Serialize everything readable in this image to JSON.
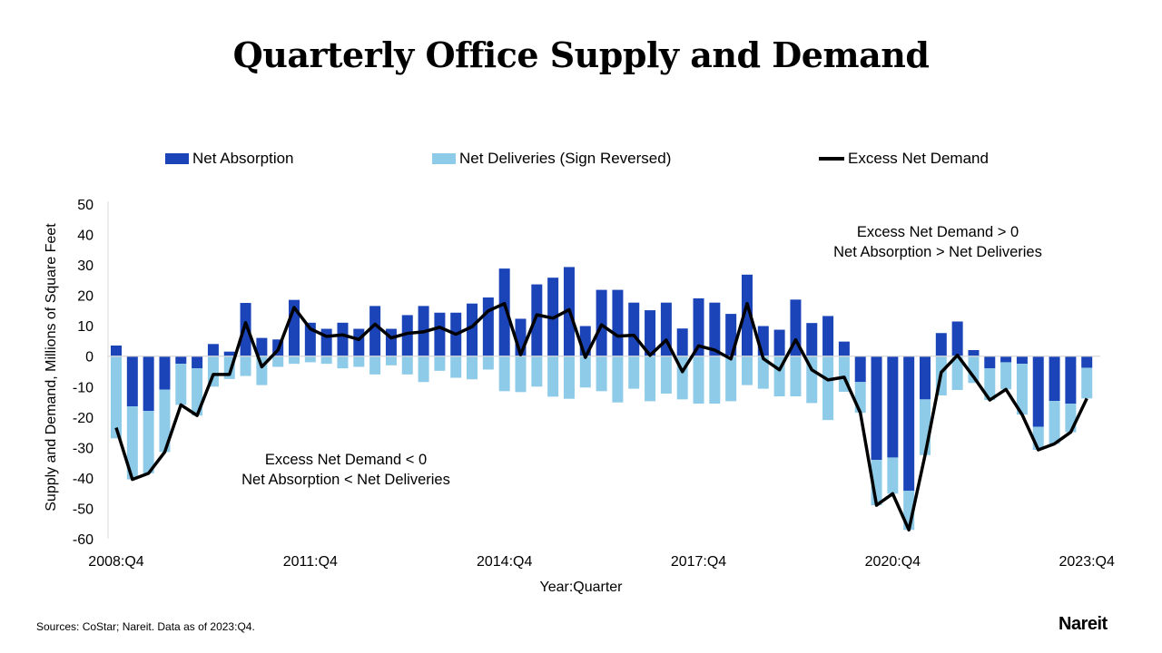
{
  "chart_data": {
    "type": "bar",
    "title": "Quarterly Office Supply and Demand",
    "xlabel": "Year:Quarter",
    "ylabel": "Supply and Demand, Millions of Square Feet",
    "ylim": [
      -60,
      50
    ],
    "yticks": [
      50,
      40,
      30,
      20,
      10,
      0,
      -10,
      -20,
      -30,
      -40,
      -50,
      -60
    ],
    "x_range": [
      "2008:Q4",
      "2023:Q4"
    ],
    "xtick_labels": [
      "2008:Q4",
      "2011:Q4",
      "2014:Q4",
      "2017:Q4",
      "2020:Q4",
      "2023:Q4"
    ],
    "xtick_every": 12,
    "grid": false,
    "legend_position": "top",
    "series": [
      {
        "name": "Net Absorption",
        "type": "bar",
        "color": "#1b44b8",
        "values": [
          3.5,
          -16.5,
          -18,
          -11,
          -2.5,
          -4,
          4,
          1.5,
          17.5,
          6,
          5.5,
          18.5,
          11,
          9,
          11,
          9,
          16.5,
          9,
          13.5,
          16.5,
          14.3,
          14.3,
          17.3,
          19.3,
          28.8,
          12.3,
          23.6,
          25.8,
          29.3,
          9.9,
          21.8,
          21.8,
          17.6,
          15.1,
          17.6,
          9.1,
          19,
          17.6,
          13.9,
          26.8,
          9.9,
          8.7,
          18.6,
          10.9,
          13.2,
          4.8,
          -8.5,
          -34.1,
          -33.3,
          -44.2,
          -14.2,
          7.6,
          11.4,
          2,
          -4,
          -2,
          -2.5,
          -23.2,
          -14.7,
          -15.6,
          -3.8
        ]
      },
      {
        "name": "Net Deliveries (Sign Reversed)",
        "type": "bar",
        "color": "#8ecbe8",
        "values": [
          -27,
          -24,
          -20.5,
          -20.5,
          -13.5,
          -15.5,
          -10,
          -7.5,
          -6.5,
          -9.5,
          -3.5,
          -2.5,
          -2,
          -2.5,
          -4,
          -3.5,
          -6,
          -3,
          -6,
          -8.5,
          -4.8,
          -7.1,
          -7.6,
          -4.4,
          -11.5,
          -11.8,
          -10,
          -13.3,
          -14,
          -10.3,
          -11.5,
          -15.2,
          -10.7,
          -14.8,
          -12.3,
          -14.2,
          -15.6,
          -15.6,
          -14.8,
          -9.5,
          -10.7,
          -13.2,
          -13.2,
          -15.4,
          -21,
          -11.7,
          -10.1,
          -14.9,
          -11.9,
          -12.9,
          -18.3,
          -12.9,
          -11.1,
          -8.8,
          -10.4,
          -8.9,
          -16.7,
          -7.6,
          -14.1,
          -9.4,
          -10.1
        ]
      },
      {
        "name": "Excess Net Demand",
        "type": "line",
        "color": "#000000",
        "values": [
          -23.5,
          -40.5,
          -38.5,
          -31.5,
          -16,
          -19.5,
          -6,
          -6,
          11,
          -3.5,
          2,
          16,
          9,
          6.5,
          7,
          5.5,
          10.5,
          6,
          7.5,
          8,
          9.5,
          7.2,
          9.7,
          14.9,
          17.3,
          0.5,
          13.6,
          12.5,
          15.3,
          -0.4,
          10.3,
          6.6,
          6.9,
          0.3,
          5.3,
          -5.1,
          3.4,
          2,
          -0.9,
          17.3,
          -0.8,
          -4.5,
          5.4,
          -4.5,
          -7.8,
          -6.9,
          -18.6,
          -49,
          -45.2,
          -57.1,
          -32.5,
          -5.3,
          0.3,
          -6.8,
          -14.4,
          -10.9,
          -19.2,
          -30.8,
          -28.8,
          -25,
          -13.9
        ]
      }
    ],
    "annotations": [
      {
        "line1": "Excess Net Demand > 0",
        "line2": "Net Absorption > Net Deliveries"
      },
      {
        "line1": "Excess Net Demand < 0",
        "line2": "Net Absorption < Net Deliveries"
      }
    ]
  },
  "footer": {
    "source": "Sources: CoStar; Nareit. Data as of 2023:Q4.",
    "logo": "Nareit"
  }
}
